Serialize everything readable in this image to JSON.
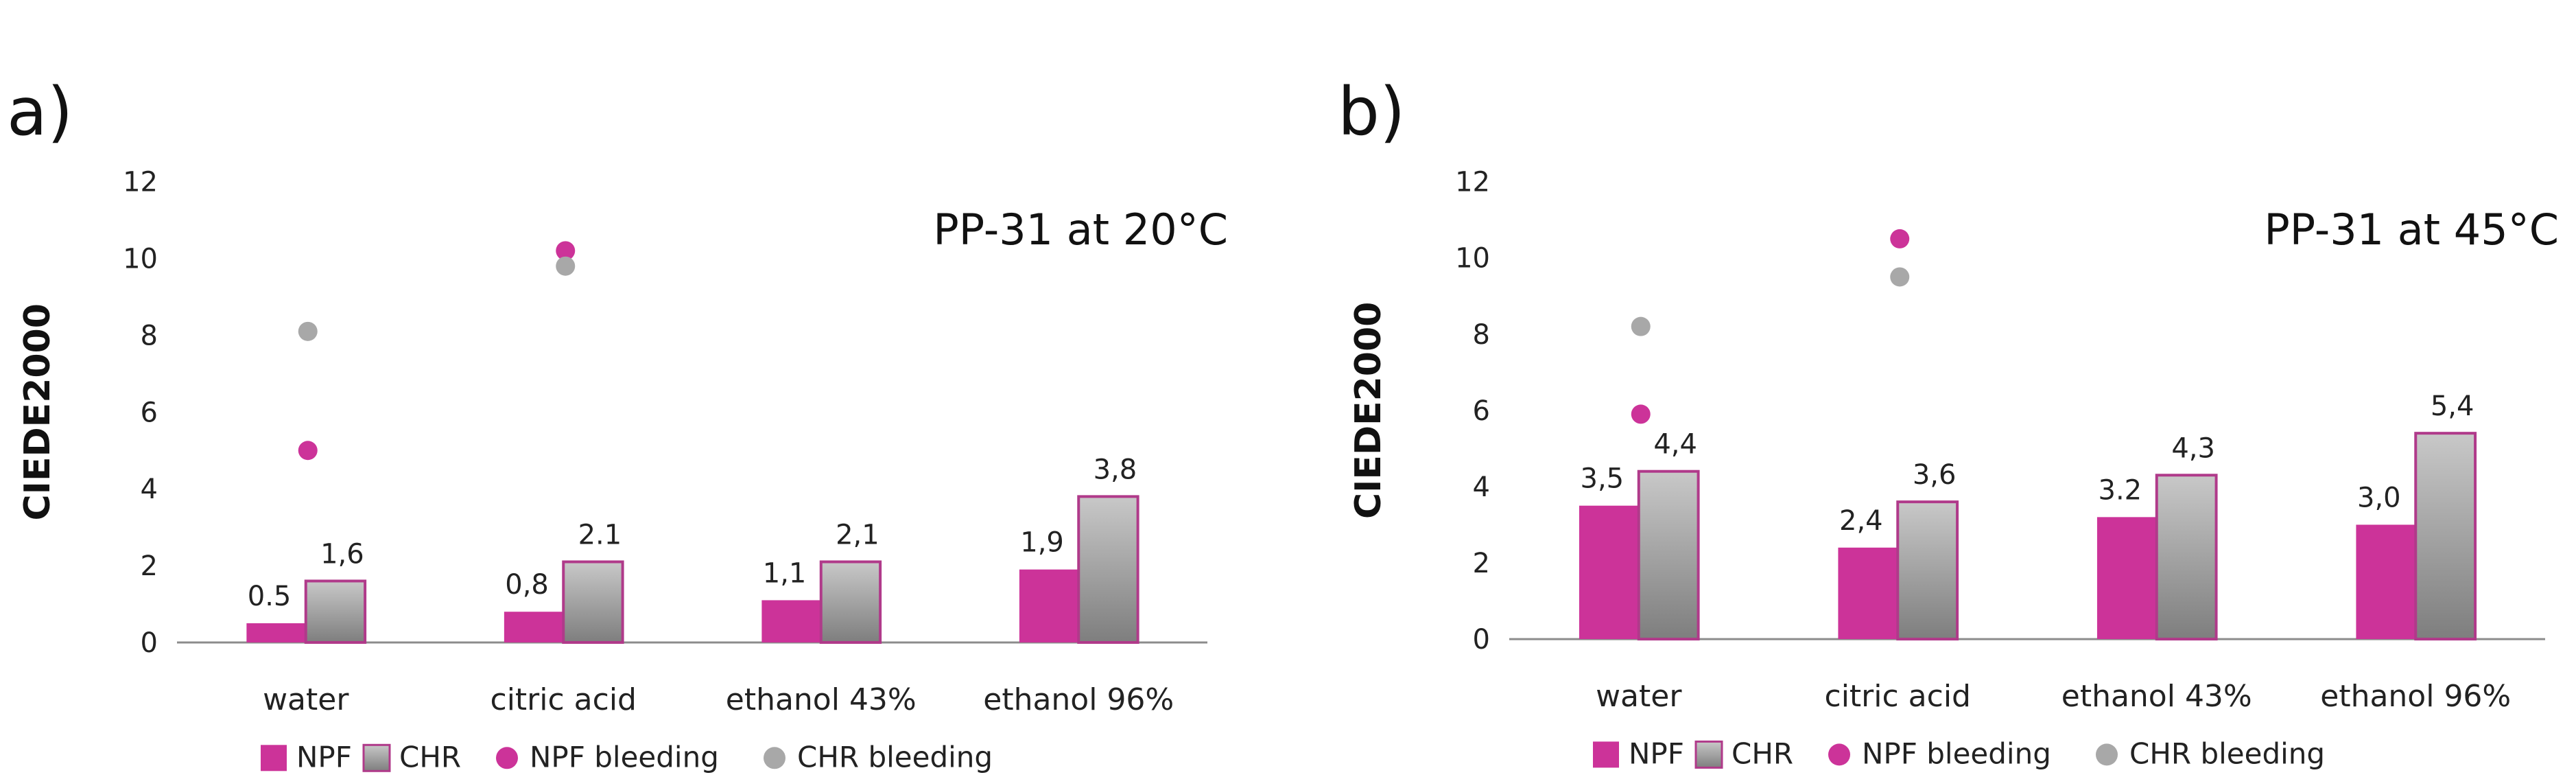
{
  "colors": {
    "npf": "#cc3399",
    "chr_top": "#c8c8c8",
    "chr_bottom": "#7e7e7e",
    "chr_border": "#b03a8a",
    "chr_bleeding": "#a8a8a8"
  },
  "legend": [
    "NPF",
    "CHR",
    "NPF bleeding",
    "CHR bleeding"
  ],
  "chart_data": [
    {
      "type": "bar",
      "panel": "a)",
      "title": "PP-31 at 20°C",
      "ylabel": "CIEDE2000",
      "ylim": [
        0,
        12
      ],
      "yticks": [
        "0",
        "2",
        "4",
        "6",
        "8",
        "10",
        "12"
      ],
      "categories": [
        "water",
        "citric acid",
        "ethanol 43%",
        "ethanol 96%"
      ],
      "series": [
        {
          "name": "NPF",
          "values": [
            0.5,
            0.8,
            1.1,
            1.9
          ],
          "labels": [
            "0.5",
            "0,8",
            "1,1",
            "1,9"
          ]
        },
        {
          "name": "CHR",
          "values": [
            1.6,
            2.1,
            2.1,
            3.8
          ],
          "labels": [
            "1,6",
            "2.1",
            "2,1",
            "3,8"
          ]
        }
      ],
      "points": [
        {
          "name": "NPF bleeding",
          "values": [
            5.0,
            10.2,
            null,
            null
          ]
        },
        {
          "name": "CHR bleeding",
          "values": [
            8.1,
            9.8,
            null,
            null
          ]
        }
      ]
    },
    {
      "type": "bar",
      "panel": "b)",
      "title": "PP-31 at 45°C",
      "ylabel": "CIEDE2000",
      "ylim": [
        0,
        12
      ],
      "yticks": [
        "0",
        "2",
        "4",
        "6",
        "8",
        "10",
        "12"
      ],
      "categories": [
        "water",
        "citric acid",
        "ethanol 43%",
        "ethanol 96%"
      ],
      "series": [
        {
          "name": "NPF",
          "values": [
            3.5,
            2.4,
            3.2,
            3.0
          ],
          "labels": [
            "3,5",
            "2,4",
            "3.2",
            "3,0"
          ]
        },
        {
          "name": "CHR",
          "values": [
            4.4,
            3.6,
            4.3,
            5.4
          ],
          "labels": [
            "4,4",
            "3,6",
            "4,3",
            "5,4"
          ]
        }
      ],
      "points": [
        {
          "name": "NPF bleeding",
          "values": [
            5.9,
            10.5,
            null,
            null
          ]
        },
        {
          "name": "CHR bleeding",
          "values": [
            8.2,
            9.5,
            null,
            null
          ]
        }
      ]
    }
  ]
}
